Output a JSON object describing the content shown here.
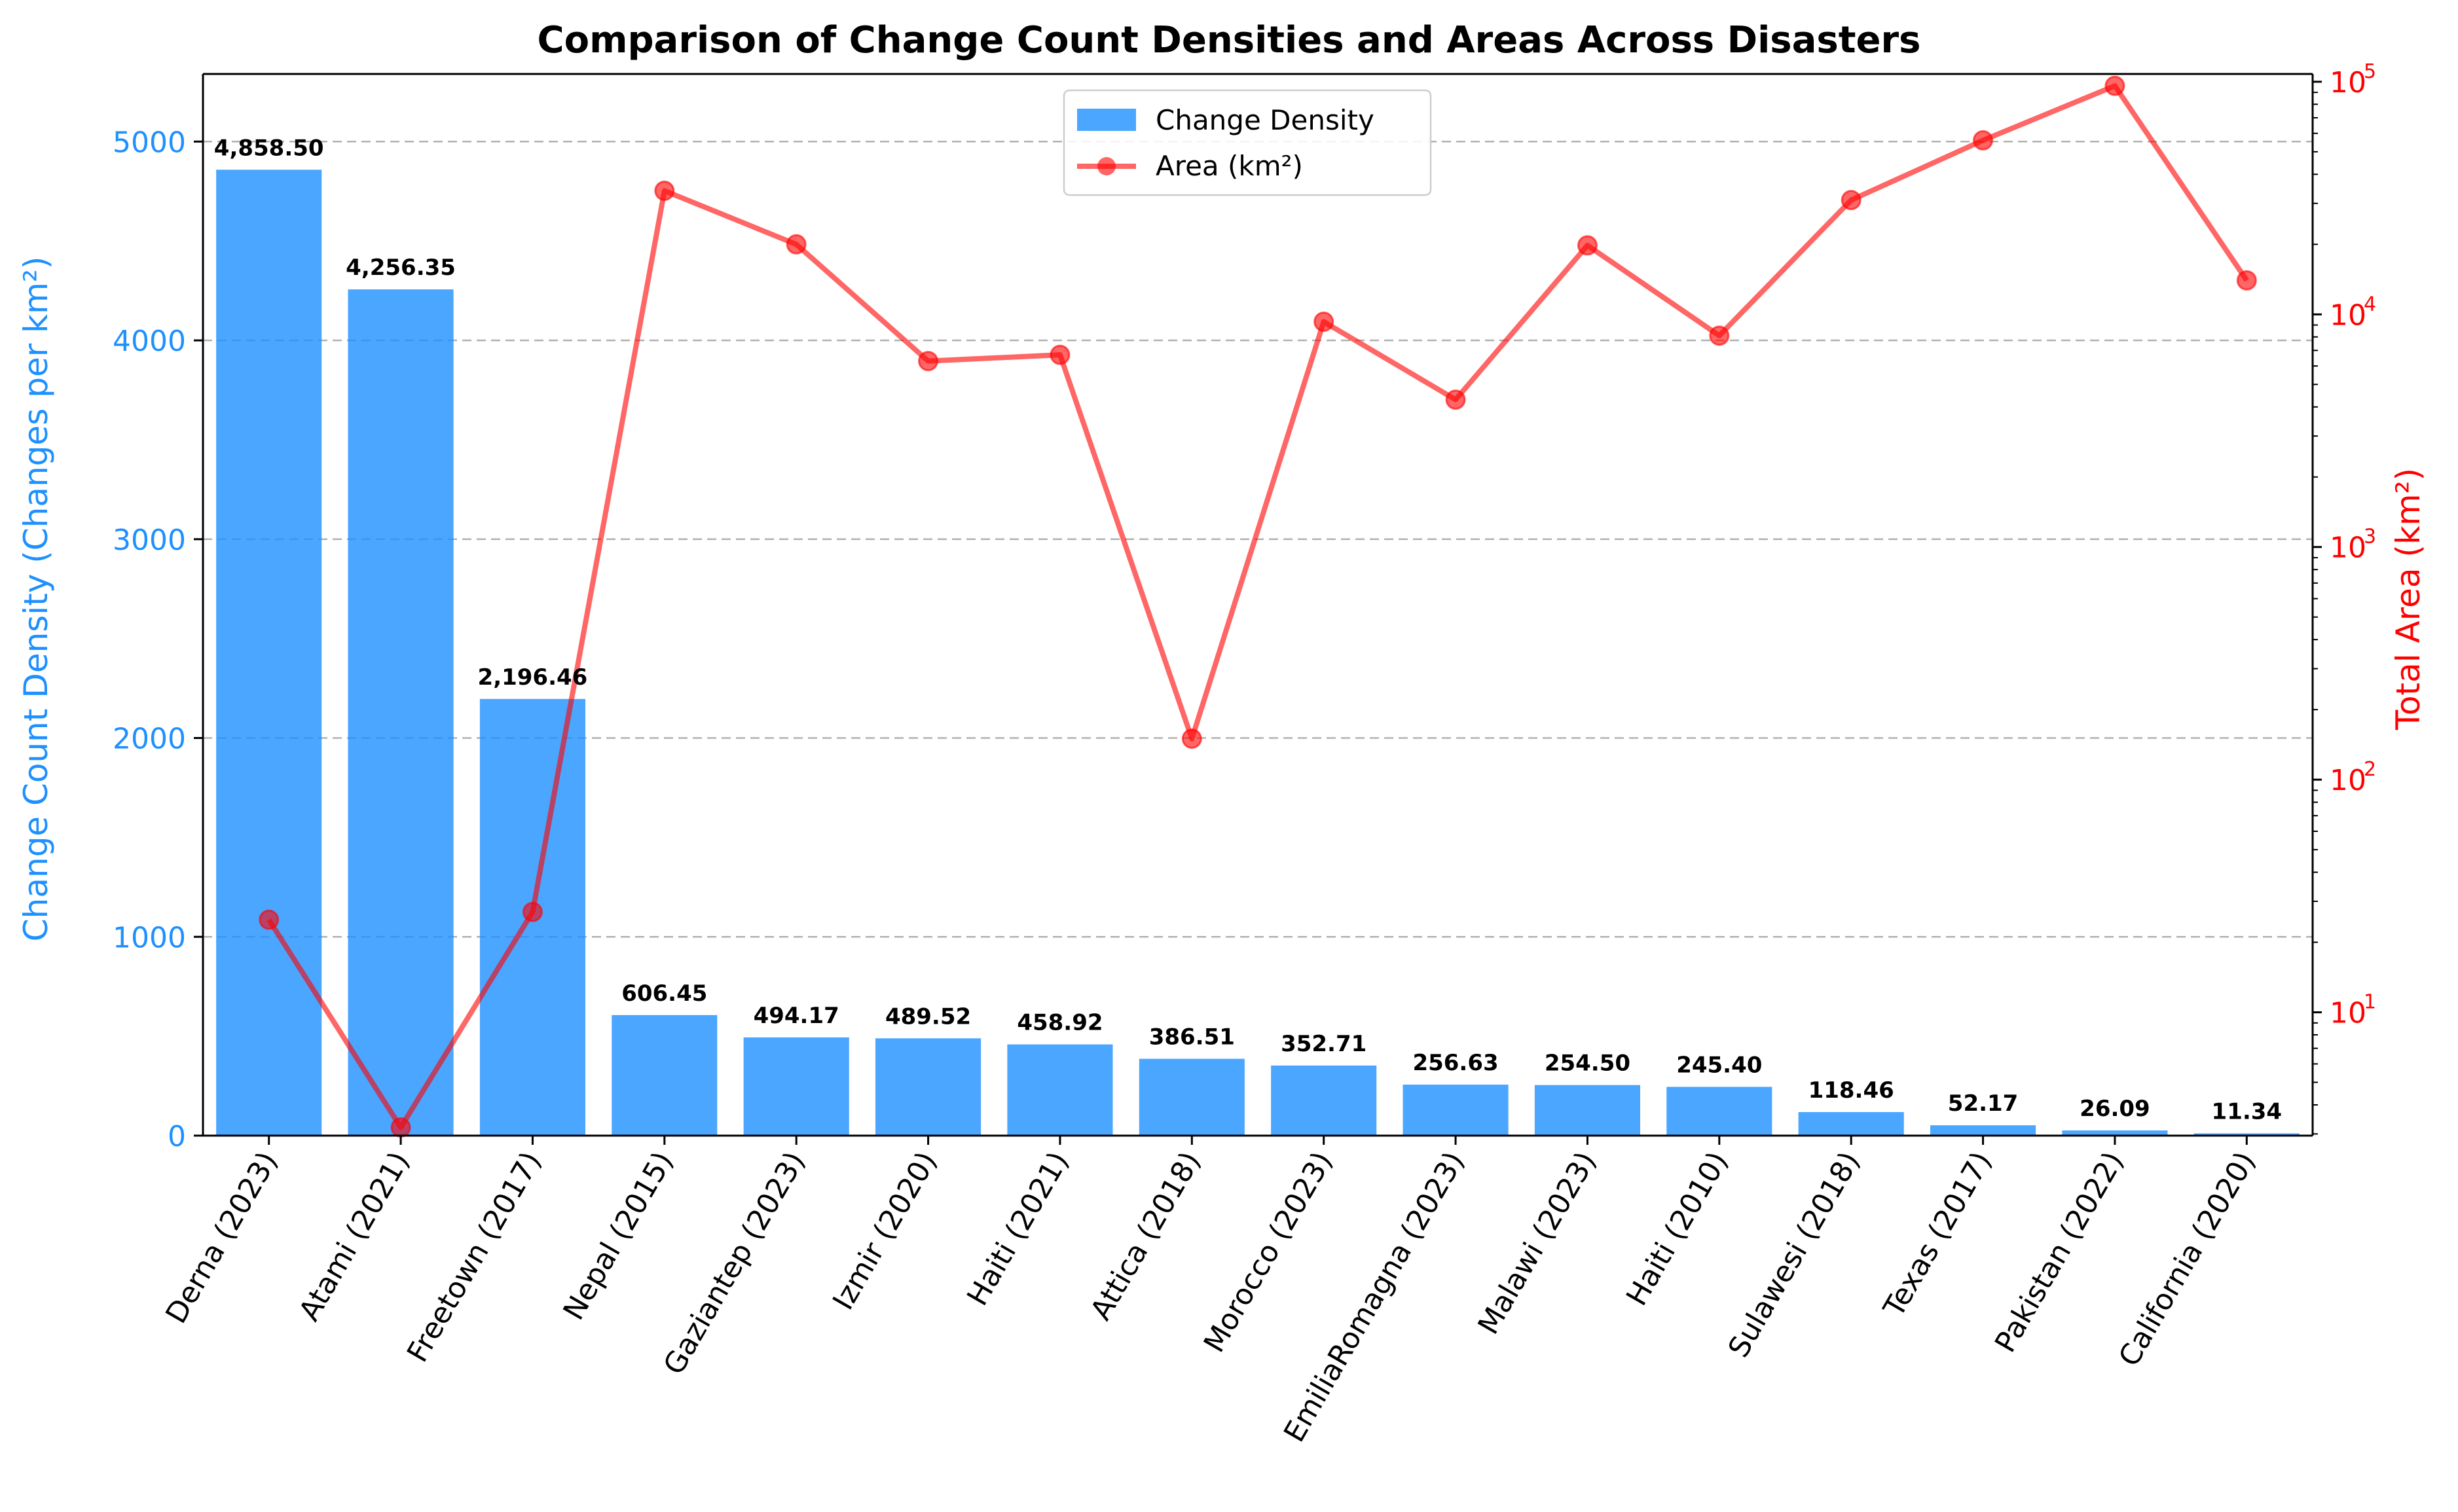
{
  "chart_data": {
    "type": "bar",
    "title": "Comparison of Change Count Densities and Areas Across Disasters",
    "categories": [
      "Derna (2023)",
      "Atami (2021)",
      "Freetown (2017)",
      "Nepal (2015)",
      "Gaziantep (2023)",
      "Izmir (2020)",
      "Haiti (2021)",
      "Attica (2018)",
      "Morocco (2023)",
      "EmiliaRomagna (2023)",
      "Malawi (2023)",
      "Haiti (2010)",
      "Sulawesi (2018)",
      "Texas (2017)",
      "Pakistan (2022)",
      "California (2020)"
    ],
    "series": [
      {
        "name": "Change Density",
        "type": "bar",
        "axis": "left",
        "color": "#1e90ff",
        "values": [
          4858.5,
          4256.35,
          2196.46,
          606.45,
          494.17,
          489.52,
          458.92,
          386.51,
          352.71,
          256.63,
          254.5,
          245.4,
          118.46,
          52.17,
          26.09,
          11.34
        ],
        "labels": [
          "4,858.50",
          "4,256.35",
          "2,196.46",
          "606.45",
          "494.17",
          "489.52",
          "458.92",
          "386.51",
          "352.71",
          "256.63",
          "254.50",
          "245.40",
          "118.46",
          "52.17",
          "26.09",
          "11.34"
        ]
      },
      {
        "name": "Area (km²)",
        "type": "line",
        "axis": "right",
        "color": "#ff0000",
        "marker": "circle",
        "values": [
          25,
          3.2,
          27,
          34000,
          20000,
          6300,
          6700,
          150,
          9300,
          4300,
          19800,
          8100,
          31000,
          56000,
          96000,
          14000
        ]
      }
    ],
    "y_left": {
      "label": "Change Count Density (Changes per km²)",
      "ylim": [
        0,
        5340
      ],
      "ticks": [
        0,
        1000,
        2000,
        3000,
        4000,
        5000
      ],
      "tick_labels": [
        "0",
        "1000",
        "2000",
        "3000",
        "4000",
        "5000"
      ],
      "color": "#1e90ff"
    },
    "y_right": {
      "label": "Total Area (km²)",
      "scale": "log",
      "ylim": [
        2.95,
        108000
      ],
      "ticks": [
        10,
        100,
        1000,
        10000,
        100000
      ],
      "tick_labels": [
        {
          "base": "10",
          "exp": "1"
        },
        {
          "base": "10",
          "exp": "2"
        },
        {
          "base": "10",
          "exp": "3"
        },
        {
          "base": "10",
          "exp": "4"
        },
        {
          "base": "10",
          "exp": "5"
        }
      ],
      "color": "#ff0000"
    },
    "grid": {
      "y": true,
      "style": "dashed"
    },
    "legend": {
      "placement": "top-center"
    }
  }
}
